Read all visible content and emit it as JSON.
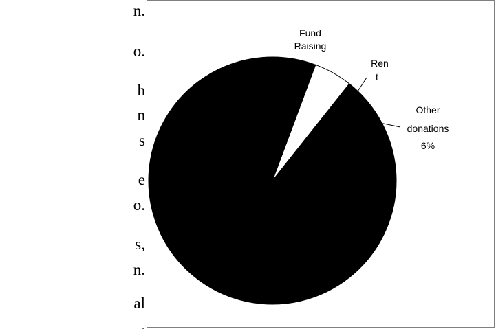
{
  "body_text_fragments": [
    "n.",
    "o.",
    "h",
    "n",
    "s",
    "e",
    "o.",
    "s,",
    "n.",
    "al",
    "."
  ],
  "chart_data": {
    "type": "pie",
    "title": "",
    "categories": [
      "Fund Raising",
      "Rent",
      "Other donations"
    ],
    "values": [
      89,
      5,
      6
    ],
    "labels": {
      "fund_raising_line1": "Fund",
      "fund_raising_line2": "Raising",
      "rent_line1": "Ren",
      "rent_line2": "t",
      "other_line1": "Other",
      "other_line2": "donations",
      "other_pct": "6%"
    },
    "colors": {
      "Fund Raising": "#000000",
      "Rent": "#ffffff",
      "Other donations": "#000000"
    },
    "legend": "none"
  }
}
